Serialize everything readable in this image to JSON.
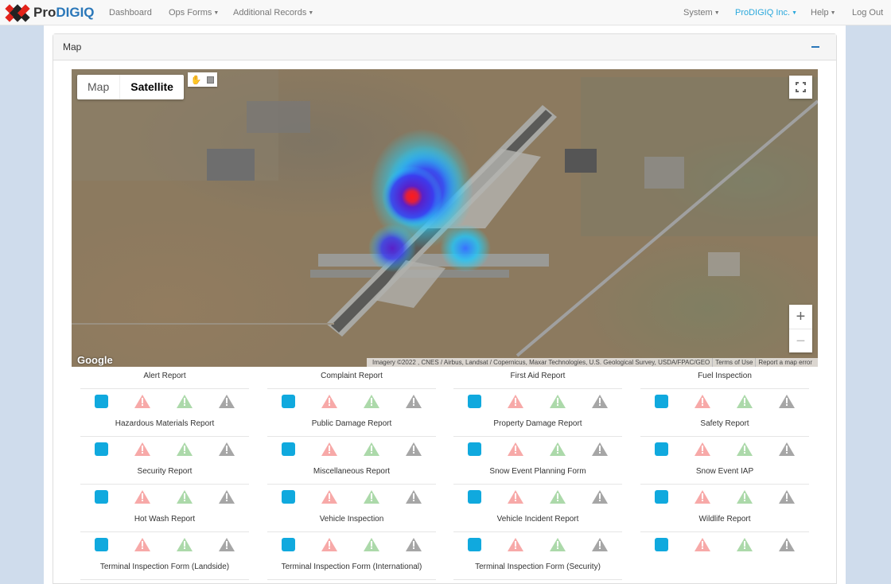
{
  "app": {
    "logo_prefix": "Pro",
    "logo_brand": "DIGIQ"
  },
  "nav": {
    "left": [
      {
        "label": "Dashboard",
        "dropdown": false
      },
      {
        "label": "Ops Forms",
        "dropdown": true
      },
      {
        "label": "Additional Records",
        "dropdown": true
      }
    ],
    "right": [
      {
        "label": "System",
        "dropdown": true
      },
      {
        "label": "ProDIGIQ Inc.",
        "dropdown": true,
        "active": true
      },
      {
        "label": "Help",
        "dropdown": true
      },
      {
        "label": "Log Out",
        "dropdown": false
      }
    ]
  },
  "panel": {
    "title": "Map"
  },
  "map": {
    "type_options": [
      "Map",
      "Satellite"
    ],
    "selected_type": "Satellite",
    "zoom_in": "+",
    "zoom_out": "−",
    "google_label": "Google",
    "attribution": [
      "Imagery ©2022 , CNES / Airbus, Landsat / Copernicus, Maxar Technologies, U.S. Geological Survey, USDA/FPAC/GEO",
      "Terms of Use",
      "Report a map error"
    ]
  },
  "colors": {
    "accent": "#2aa8dc",
    "blue_square": "#10a9de",
    "red_tri": "#f7a9a8",
    "green_tri": "#acd9aa",
    "gray_tri": "#a6a6a6"
  },
  "reports": [
    {
      "name": "Alert Report"
    },
    {
      "name": "Complaint Report"
    },
    {
      "name": "First Aid Report"
    },
    {
      "name": "Fuel Inspection"
    },
    {
      "name": "Hazardous Materials Report"
    },
    {
      "name": "Public Damage Report"
    },
    {
      "name": "Property Damage Report"
    },
    {
      "name": "Safety Report"
    },
    {
      "name": "Security Report"
    },
    {
      "name": "Miscellaneous Report"
    },
    {
      "name": "Snow Event Planning Form"
    },
    {
      "name": "Snow Event IAP"
    },
    {
      "name": "Hot Wash Report"
    },
    {
      "name": "Vehicle Inspection"
    },
    {
      "name": "Vehicle Incident Report"
    },
    {
      "name": "Wildlife Report"
    },
    {
      "name": "Terminal Inspection Form (Landside)"
    },
    {
      "name": "Terminal Inspection Form (International)"
    },
    {
      "name": "Terminal Inspection Form (Security)"
    }
  ]
}
